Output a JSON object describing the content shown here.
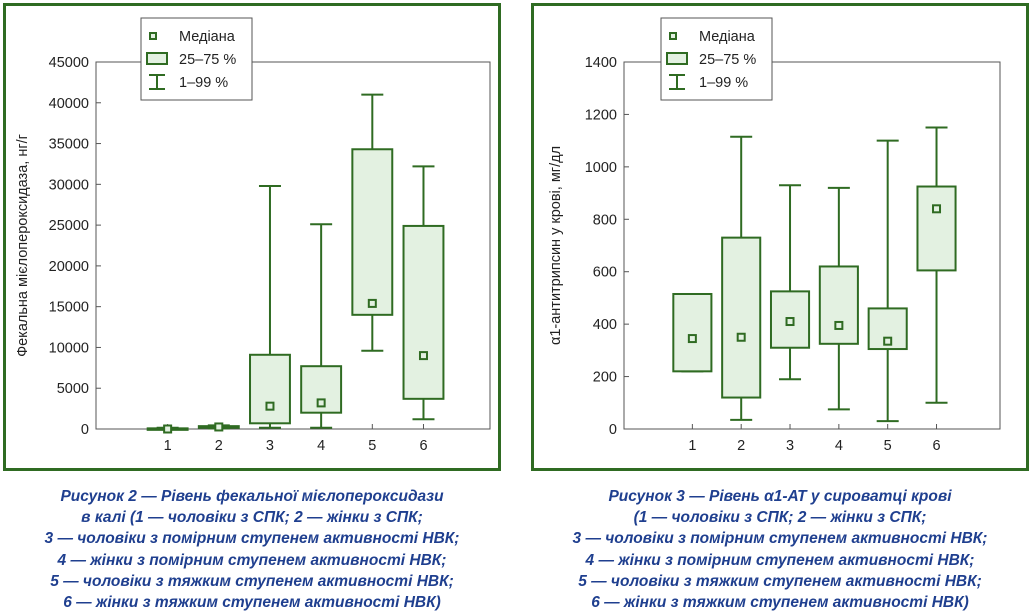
{
  "colors": {
    "frame": "#2f6b22",
    "box_fill": "#e3f1e1",
    "box_stroke": "#2f6b22",
    "caption": "#1f3f8f",
    "axis": "#555555"
  },
  "legend": {
    "median": "Медіана",
    "iqr": "25–75 %",
    "range": "1–99 %"
  },
  "chart_data": [
    {
      "type": "boxplot",
      "ylabel": "Фекальна мієлопероксидаза, нг/г",
      "ylim": [
        0,
        45000
      ],
      "yticks": [
        0,
        5000,
        10000,
        15000,
        20000,
        25000,
        30000,
        35000,
        40000,
        45000
      ],
      "categories": [
        "1",
        "2",
        "3",
        "4",
        "5",
        "6"
      ],
      "boxes": [
        {
          "category": "1",
          "min": 0,
          "q1": 0,
          "median": 0,
          "q3": 80,
          "max": 150
        },
        {
          "category": "2",
          "min": 80,
          "q1": 150,
          "median": 250,
          "q3": 350,
          "max": 450
        },
        {
          "category": "3",
          "min": 150,
          "q1": 700,
          "median": 2800,
          "q3": 9100,
          "max": 29800
        },
        {
          "category": "4",
          "min": 150,
          "q1": 2000,
          "median": 3200,
          "q3": 7700,
          "max": 25100
        },
        {
          "category": "5",
          "min": 9600,
          "q1": 14000,
          "median": 15400,
          "q3": 34300,
          "max": 41000
        },
        {
          "category": "6",
          "min": 1200,
          "q1": 3700,
          "median": 9000,
          "q3": 24900,
          "max": 32200
        }
      ],
      "caption": [
        "Рисунок 2 — Рівень фекальної мієлопероксидази",
        "в калі (1 — чоловіки з СПК; 2 — жінки з СПК;",
        "3 — чоловіки з помірним ступенем активності НВК;",
        "4 — жінки з помірним ступенем активності НВК;",
        "5 — чоловіки з тяжким ступенем активності НВК;",
        "6 — жінки з тяжким ступенем активності НВК)"
      ]
    },
    {
      "type": "boxplot",
      "ylabel": "α1-антитрипсин у крові, мг/дл",
      "ylim": [
        0,
        1400
      ],
      "yticks": [
        0,
        200,
        400,
        600,
        800,
        1000,
        1200,
        1400
      ],
      "categories": [
        "1",
        "2",
        "3",
        "4",
        "5",
        "6"
      ],
      "boxes": [
        {
          "category": "1",
          "min": 220,
          "q1": 220,
          "median": 345,
          "q3": 515,
          "max": 515
        },
        {
          "category": "2",
          "min": 35,
          "q1": 120,
          "median": 350,
          "q3": 730,
          "max": 1115
        },
        {
          "category": "3",
          "min": 190,
          "q1": 310,
          "median": 410,
          "q3": 525,
          "max": 930
        },
        {
          "category": "4",
          "min": 75,
          "q1": 325,
          "median": 395,
          "q3": 620,
          "max": 920
        },
        {
          "category": "5",
          "min": 30,
          "q1": 305,
          "median": 335,
          "q3": 460,
          "max": 1100
        },
        {
          "category": "6",
          "min": 100,
          "q1": 605,
          "median": 840,
          "q3": 925,
          "max": 1150
        }
      ],
      "caption": [
        "Рисунок 3 — Рівень α1-АТ у сироватці крові",
        "(1 — чоловіки з СПК; 2 — жінки з СПК;",
        "3 — чоловіки з помірним ступенем активності НВК;",
        "4 — жінки з помірним ступенем активності НВК;",
        "5 — чоловіки з тяжким ступенем активності НВК;",
        "6 — жінки з тяжким ступенем активності НВК)"
      ]
    }
  ]
}
